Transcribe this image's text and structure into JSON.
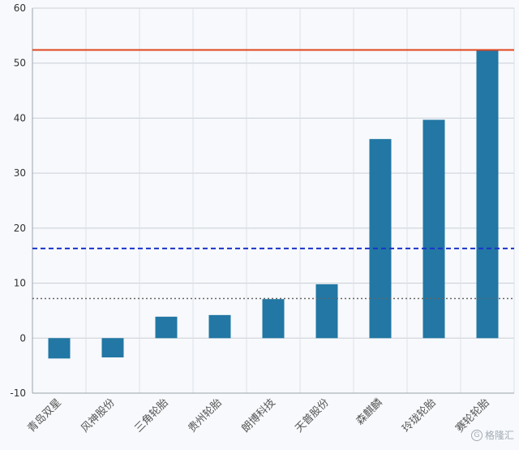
{
  "chart_data": {
    "type": "bar",
    "title": "",
    "xlabel": "",
    "ylabel": "",
    "categories": [
      "青岛双星",
      "风神股份",
      "三角轮胎",
      "贵州轮胎",
      "朗博科技",
      "天普股份",
      "森麒麟",
      "玲珑轮胎",
      "赛轮轮胎"
    ],
    "values": [
      -3.7,
      -3.5,
      3.9,
      4.2,
      7.1,
      9.8,
      36.2,
      39.7,
      52.4
    ],
    "ylim": [
      -10,
      60
    ],
    "yticks": [
      -10,
      0,
      10,
      20,
      30,
      40,
      50,
      60
    ],
    "grid": true,
    "bar_color": "#2277a4",
    "reference_lines": [
      {
        "value": 52.4,
        "style": "solid",
        "color": "#e0451f"
      },
      {
        "value": 16.3,
        "style": "dashed",
        "color": "#1b34c8"
      },
      {
        "value": 7.2,
        "style": "dotted",
        "color": "#666666"
      }
    ]
  },
  "watermark": {
    "text": "格隆汇",
    "icon": "watermark-logo-icon"
  }
}
